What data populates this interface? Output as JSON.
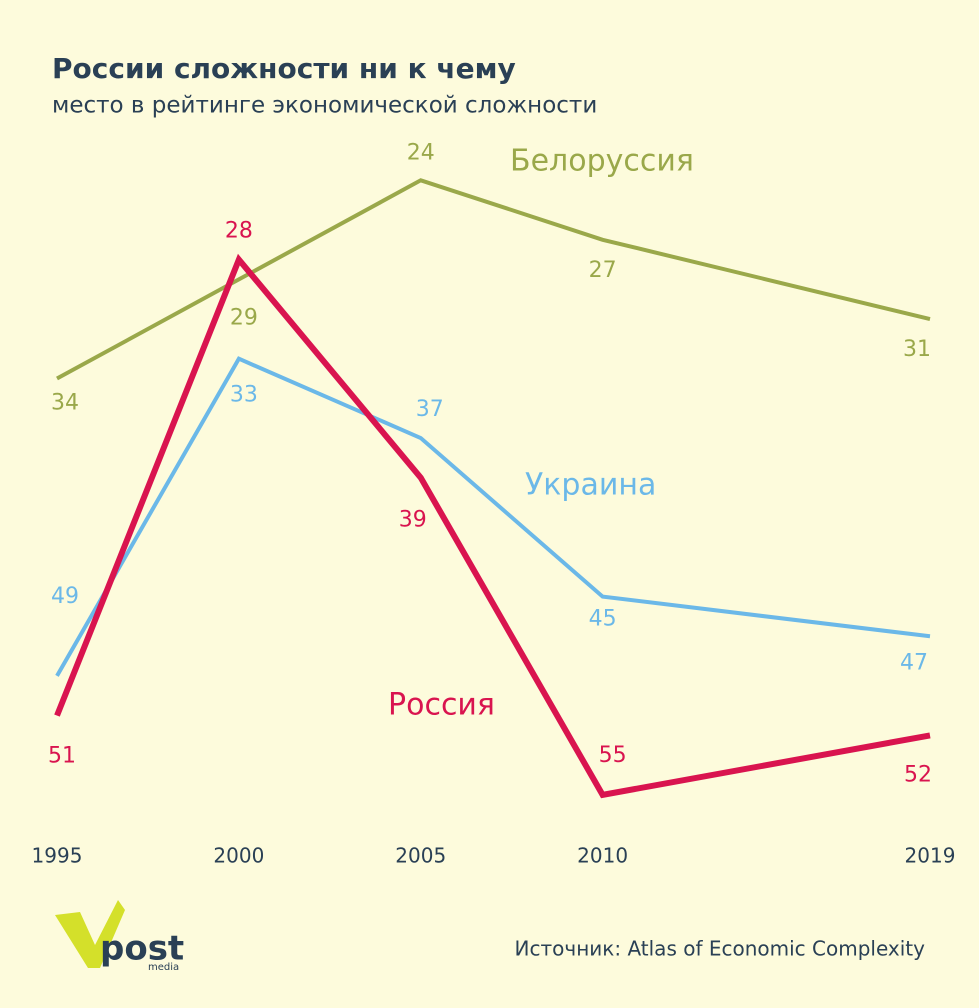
{
  "chart_data": {
    "type": "line",
    "title": "России сложности ни к чему",
    "subtitle": "место в рейтинге экономической сложности",
    "x": [
      1995,
      2000,
      2005,
      2010,
      2019
    ],
    "xlim": [
      1995,
      2019
    ],
    "xticks": [
      1995,
      2000,
      2005,
      2010,
      2019
    ],
    "ylim": [
      20,
      60
    ],
    "y_inverted": true,
    "series": [
      {
        "name": "Белоруссия",
        "color": "#9aa84a",
        "values": [
          34,
          29,
          24,
          27,
          31
        ]
      },
      {
        "name": "Украина",
        "color": "#6bb8e8",
        "values": [
          49,
          33,
          37,
          45,
          47
        ]
      },
      {
        "name": "Россия",
        "color": "#d9144f",
        "values": [
          51,
          28,
          39,
          55,
          52
        ]
      }
    ],
    "source": "Источник: Atlas of Economic Complexity",
    "logo": {
      "main": "post",
      "sub": "media"
    }
  }
}
